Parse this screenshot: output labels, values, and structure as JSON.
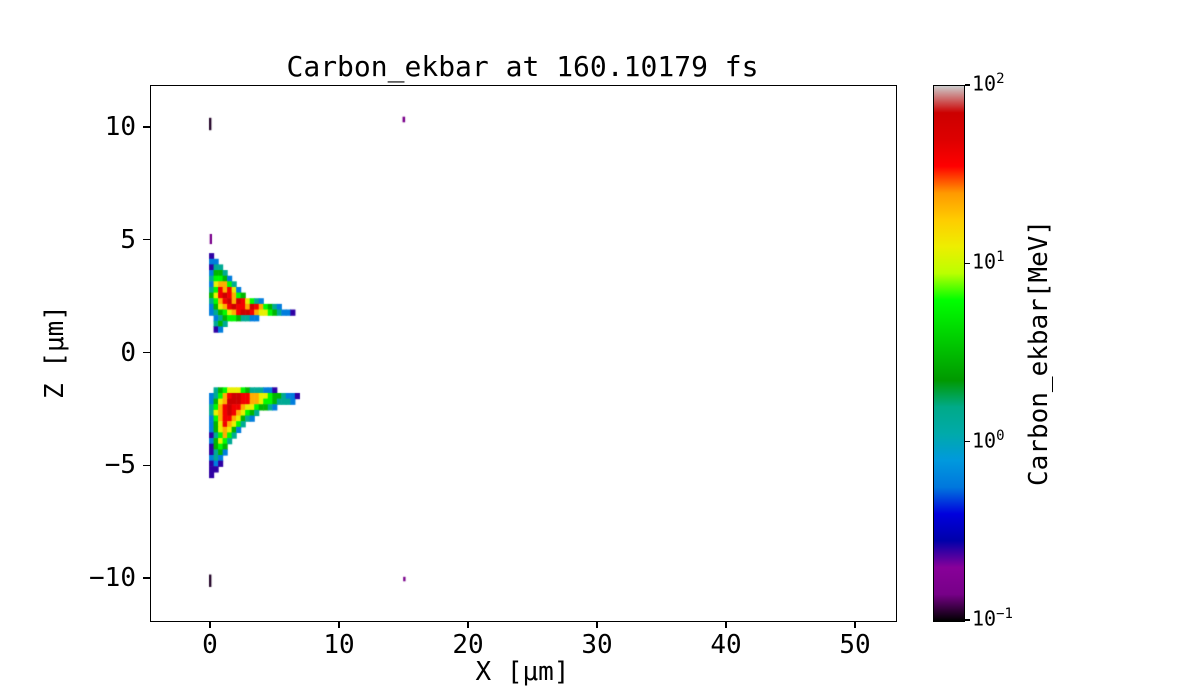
{
  "chart_data": {
    "type": "heatmap",
    "title": "Carbon_ekbar at 160.10179 fs",
    "x_axis": {
      "label": "X [μm]",
      "lim": [
        -4.65,
        53.1
      ],
      "ticks": [
        {
          "value": 0,
          "label": "0"
        },
        {
          "value": 10,
          "label": "10"
        },
        {
          "value": 20,
          "label": "20"
        },
        {
          "value": 30,
          "label": "30"
        },
        {
          "value": 40,
          "label": "40"
        },
        {
          "value": 50,
          "label": "50"
        }
      ]
    },
    "z_axis": {
      "label": "Z [μm]",
      "lim": [
        -11.86,
        11.86
      ],
      "ticks": [
        {
          "value": -10,
          "label": "−10"
        },
        {
          "value": -5,
          "label": "−5"
        },
        {
          "value": 0,
          "label": "0"
        },
        {
          "value": 5,
          "label": "5"
        },
        {
          "value": 10,
          "label": "10"
        }
      ]
    },
    "colorbar": {
      "label": "Carbon_ekbar[MeV]",
      "scale": "log",
      "vmin": 0.1,
      "vmax": 100,
      "ticks": [
        {
          "value": 100,
          "mantissa": "10",
          "exponent": "2"
        },
        {
          "value": 10,
          "mantissa": "10",
          "exponent": "1"
        },
        {
          "value": 1,
          "mantissa": "10",
          "exponent": "0"
        },
        {
          "value": 0.1,
          "mantissa": "10",
          "exponent": "−1"
        }
      ]
    },
    "colormap": {
      "name": "nipy_spectral",
      "stops": [
        [
          0.0,
          "#000000"
        ],
        [
          0.05,
          "#770088"
        ],
        [
          0.1,
          "#880099"
        ],
        [
          0.15,
          "#0000AA"
        ],
        [
          0.2,
          "#0000DD"
        ],
        [
          0.25,
          "#0077DD"
        ],
        [
          0.3,
          "#0099DD"
        ],
        [
          0.35,
          "#00AAAA"
        ],
        [
          0.4,
          "#00AA88"
        ],
        [
          0.45,
          "#009900"
        ],
        [
          0.5,
          "#00BB00"
        ],
        [
          0.55,
          "#00DD00"
        ],
        [
          0.6,
          "#00FF00"
        ],
        [
          0.65,
          "#BBFF00"
        ],
        [
          0.7,
          "#EEEE00"
        ],
        [
          0.75,
          "#FFCC00"
        ],
        [
          0.8,
          "#FF9900"
        ],
        [
          0.85,
          "#FF0000"
        ],
        [
          0.9,
          "#DD0000"
        ],
        [
          0.95,
          "#CC0000"
        ],
        [
          1.0,
          "#CCCCCC"
        ]
      ]
    },
    "heatmap": {
      "units": "μm grid cells, values in MeV",
      "dx": 0.35,
      "dz": 0.25,
      "value_map_mev": {
        "1": 0.25,
        "2": 0.6,
        "3": 1.4,
        "4": 3,
        "5": 6,
        "6": 12,
        "7": 22,
        "8": 40,
        "9": 70
      },
      "blobs": [
        {
          "name": "upper-jet",
          "x0": -0.5,
          "z_top": 4.45,
          "rows": [
            ".1",
            ".22",
            ".133",
            ".2443",
            ".35542",
            ".267753",
            ".3587862",
            ".46898754",
            ".357897986532",
            ".2467898879875432",
            ".2345678998766543221",
            "..2345543322",
            "..343",
            "..12"
          ]
        },
        {
          "name": "lower-jet",
          "x0": -0.5,
          "z_top": -1.5,
          "rows": [
            "..34566654333221",
            ".23578998877665443221",
            ".2467999887765543332",
            ".357898876654432",
            ".36789876543",
            ".2578876432",
            ".24687653",
            ".2467642",
            ".135753",
            ".24653",
            ".1454",
            ".1342",
            ".232",
            ".121",
            ".11",
            ".1"
          ]
        }
      ]
    },
    "specks": [
      {
        "x": -0.15,
        "z": 10.45,
        "w": 0.18,
        "h": 0.55,
        "v": 0.11
      },
      {
        "x": 14.85,
        "z": 10.5,
        "w": 0.2,
        "h": 0.25,
        "v": 0.15
      },
      {
        "x": -0.1,
        "z": 5.3,
        "w": 0.18,
        "h": 0.45,
        "v": 0.15
      },
      {
        "x": -0.15,
        "z": -9.8,
        "w": 0.18,
        "h": 0.55,
        "v": 0.11
      },
      {
        "x": 14.9,
        "z": -9.9,
        "w": 0.18,
        "h": 0.2,
        "v": 0.15
      }
    ]
  }
}
